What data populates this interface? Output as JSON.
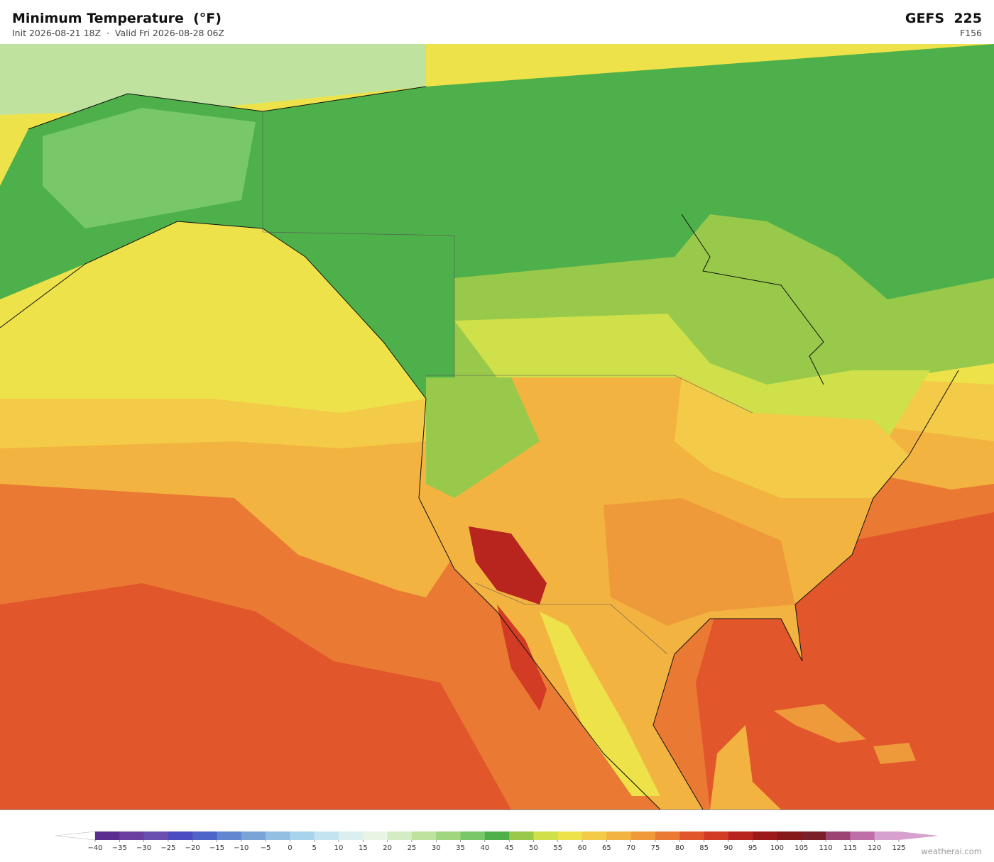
{
  "header": {
    "title": "Minimum Temperature  (°F)",
    "subtitle": "Init 2026-08-21 18Z  ·  Valid Fri 2026-08-28 06Z",
    "model": "GEFS  225",
    "forecast_hour": "F156"
  },
  "colorbar": {
    "ticks": [
      {
        "value": -40,
        "label": "−40"
      },
      {
        "value": -35,
        "label": "−35"
      },
      {
        "value": -30,
        "label": "−30"
      },
      {
        "value": -25,
        "label": "−25"
      },
      {
        "value": -20,
        "label": "−20"
      },
      {
        "value": -15,
        "label": "−15"
      },
      {
        "value": -10,
        "label": "−10"
      },
      {
        "value": -5,
        "label": "−5"
      },
      0,
      5,
      10,
      15,
      20,
      25,
      30,
      35,
      40,
      45,
      50,
      55,
      60,
      65,
      70,
      75,
      80,
      85,
      90,
      95,
      100,
      105,
      110,
      115,
      120,
      125
    ],
    "colors": [
      "#5b2d91",
      "#6b3fa0",
      "#6a4fb0",
      "#4b4cc0",
      "#4e64c8",
      "#6286d0",
      "#7aa4d8",
      "#93bfe2",
      "#a9d3ec",
      "#c3e3f0",
      "#dcefef",
      "#e8f5e4",
      "#d4ecc4",
      "#bfe39e",
      "#9fd67e",
      "#78c86a",
      "#4eb04a",
      "#98c94a",
      "#cfe04a",
      "#ede24a",
      "#f4cb48",
      "#f3b340",
      "#ef9a3a",
      "#ea7a33",
      "#e2562b",
      "#d23c24",
      "#b8251f",
      "#9c1a1a",
      "#851818",
      "#7a1f2a",
      "#9b4474",
      "#bf6fa8",
      "#d6a0cf"
    ],
    "under_color": "#ffffff",
    "over_color": "#d6a0cf"
  },
  "footer": {
    "credit": "weatherai.com"
  }
}
